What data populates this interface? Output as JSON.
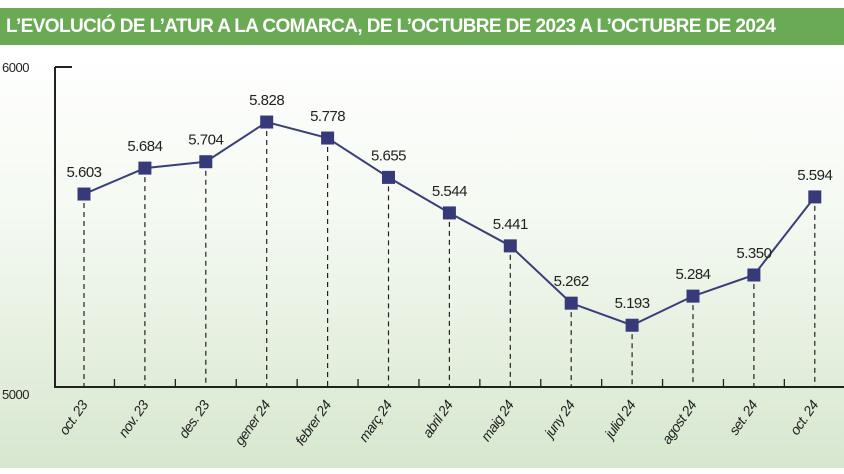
{
  "chart_data": {
    "type": "line",
    "title": "L’EVOLUCIÓ DE L’ATUR A LA COMARCA, DE L’OCTUBRE DE 2023 A L’OCTUBRE DE 2024",
    "categories": [
      "oct. 23",
      "nov. 23",
      "des. 23",
      "gener 24",
      "febrer 24",
      "març 24",
      "abril 24",
      "maig 24",
      "juny 24",
      "juliol 24",
      "agost 24",
      "set. 24",
      "oct. 24"
    ],
    "values": [
      5603,
      5684,
      5704,
      5828,
      5778,
      5655,
      5544,
      5441,
      5262,
      5193,
      5284,
      5350,
      5594
    ],
    "data_labels": [
      "5.603",
      "5.684",
      "5.704",
      "5.828",
      "5.778",
      "5.655",
      "5.544",
      "5.441",
      "5.262",
      "5.193",
      "5.284",
      "5.350",
      "5.594"
    ],
    "ylim": [
      5000,
      6000
    ],
    "yticks": [
      "5000",
      "6000"
    ],
    "grid": false,
    "line_color": "#3a3f7a",
    "marker_color": "#363a78",
    "banner_color": "#6aaa55"
  }
}
